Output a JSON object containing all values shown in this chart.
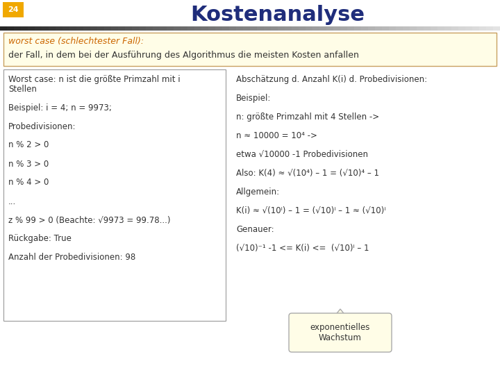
{
  "title": "Kostenanalyse",
  "slide_number": "24",
  "slide_num_bg": "#F0A800",
  "title_color": "#1F2D7B",
  "bg_color": "#FFFFFF",
  "subtitle_box_bg": "#FFFDE7",
  "subtitle_box_border": "#C8A060",
  "subtitle_line1": "worst case (schlechtester Fall):",
  "subtitle_line1_color": "#CC6600",
  "subtitle_line2": "der Fall, in dem bei der Ausführung des Algorithmus die meisten Kosten anfallen",
  "subtitle_line2_color": "#333333",
  "left_box_border": "#999999",
  "left_box_bg": "#FFFFFF",
  "left_lines": [
    "Worst case: n ist die größte Primzahl mit i",
    "Stellen",
    " ",
    "Beispiel: i = 4; n = 9973;",
    " ",
    "Probedivisionen:",
    " ",
    "n % 2 > 0",
    " ",
    "n % 3 > 0",
    " ",
    "n % 4 > 0",
    " ",
    "...",
    " ",
    "z % 99 > 0 (Beachte: √9973 = 99.78...)",
    " ",
    "Rückgabe: True",
    " ",
    "Anzahl der Probedivisionen: 98"
  ],
  "right_lines": [
    "Abschätzung d. Anzahl K(i) d. Probedivisionen:",
    " ",
    "Beispiel:",
    " ",
    "n: größte Primzahl mit 4 Stellen ->",
    " ",
    "n ≈ 10000 = 10⁴ ->",
    " ",
    "etwa √10000 -1 Probedivisionen",
    " ",
    "Also: K(4) ≈ √(10⁴) – 1 = (√10)⁴ – 1",
    " ",
    "Allgemein:",
    " ",
    "K(i) ≈ √(10ⁱ) – 1 = (√10)ⁱ – 1 ≈ (√10)ⁱ",
    " ",
    "Genauer:",
    " ",
    "(√10)⁻¹ -1 <= K(i) <=  (√10)ⁱ – 1"
  ],
  "callout_text": "exponentielles\nWachstum",
  "callout_bg": "#FFFDE7",
  "callout_border": "#AAAAAA",
  "text_color": "#333333",
  "font_size_title": 22,
  "font_size_body": 8.5,
  "font_size_subtitle": 9.0,
  "font_size_badge": 8
}
